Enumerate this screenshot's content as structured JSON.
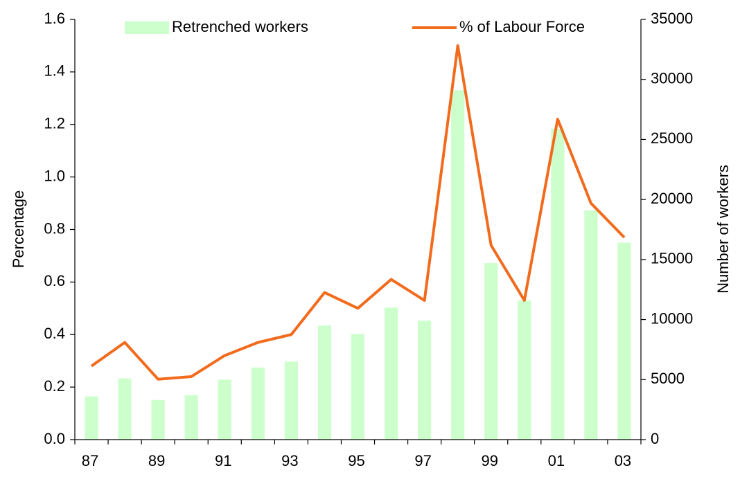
{
  "chart_data": {
    "type": "bar_line",
    "categories": [
      "87",
      null,
      "89",
      null,
      "91",
      null,
      "93",
      null,
      "95",
      null,
      "97",
      null,
      "99",
      null,
      "01",
      null,
      "03"
    ],
    "series": [
      {
        "name": "Retrenched workers",
        "type": "bar",
        "axis": "y2",
        "color": "#ccffcc",
        "values": [
          3600,
          5100,
          3300,
          3700,
          5000,
          6000,
          6500,
          9500,
          8800,
          11000,
          9900,
          29100,
          14700,
          11600,
          25900,
          19100,
          16400
        ]
      },
      {
        "name": "% of Labour Force",
        "type": "line",
        "axis": "y",
        "color": "#f26b1d",
        "values": [
          0.28,
          0.37,
          0.23,
          0.24,
          0.32,
          0.37,
          0.4,
          0.56,
          0.5,
          0.61,
          0.53,
          1.5,
          0.74,
          0.53,
          1.22,
          0.9,
          0.77
        ]
      }
    ],
    "ylabel": "Percentage",
    "y2label": "Number of workers",
    "ylim": [
      0,
      1.6
    ],
    "yticks": [
      {
        "value": 0,
        "label": "0.0"
      },
      0.2,
      0.4,
      0.6,
      0.8,
      {
        "value": 1,
        "label": "1.0"
      },
      1.2,
      1.4,
      1.6
    ],
    "y2lim": [
      0,
      35000
    ],
    "y2ticks": [
      0,
      5000,
      10000,
      15000,
      20000,
      25000,
      30000,
      35000
    ]
  }
}
